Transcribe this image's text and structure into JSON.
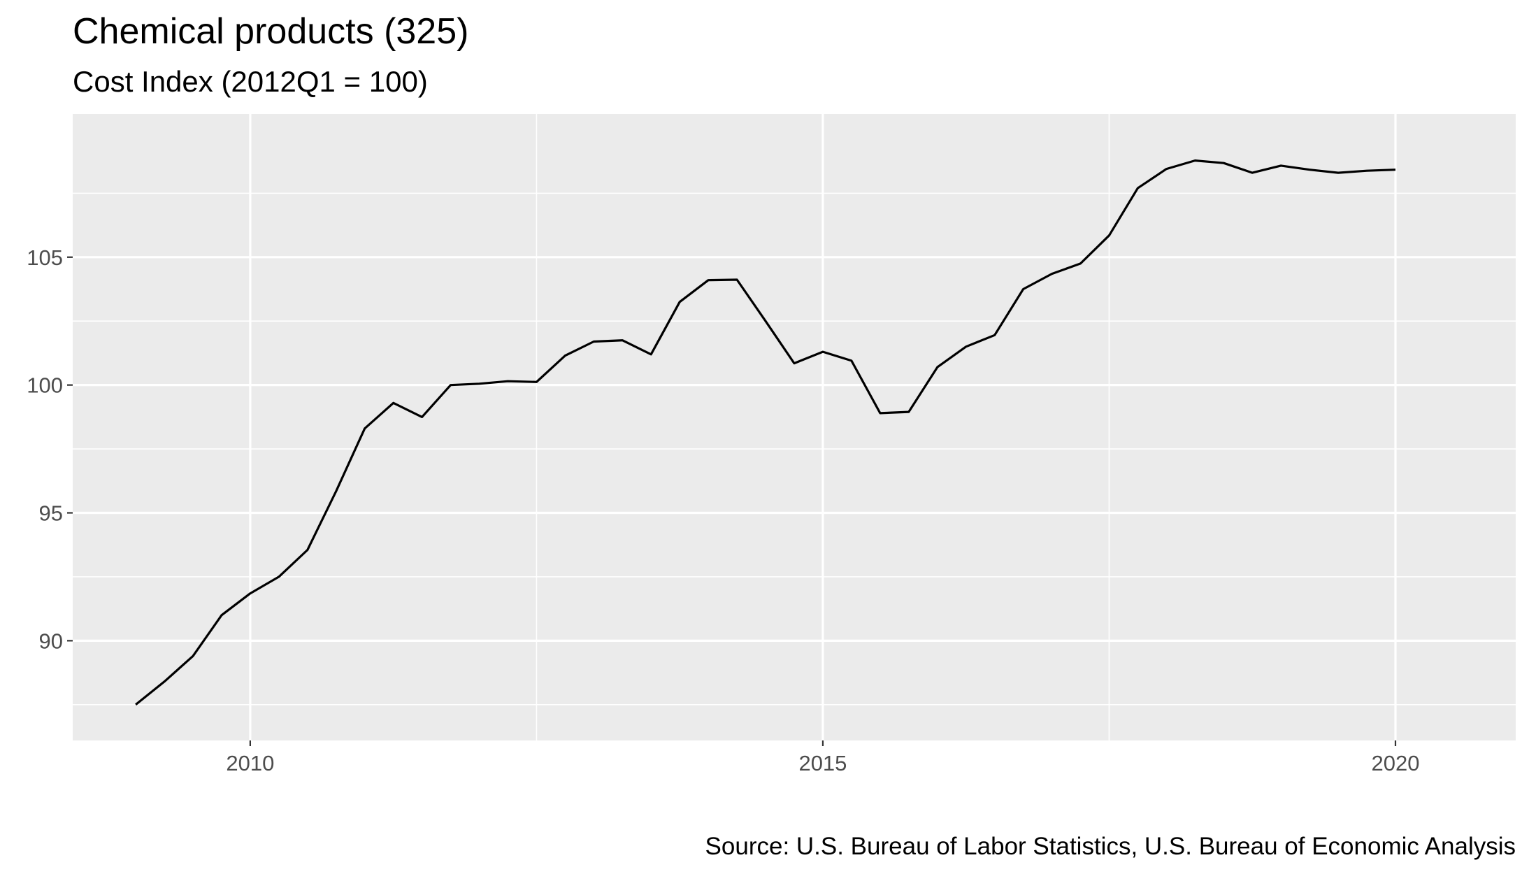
{
  "chart_data": {
    "type": "line",
    "title": "Chemical products (325)",
    "subtitle": "Cost Index (2012Q1 = 100)",
    "caption": "Source: U.S. Bureau of Labor Statistics, U.S. Bureau of Economic Analysis",
    "xlabel": "",
    "ylabel": "",
    "xlim": [
      2008.45,
      2021.05
    ],
    "ylim": [
      86.1,
      110.6
    ],
    "x_ticks": [
      2010,
      2015,
      2020
    ],
    "x_tick_labels": [
      "2010",
      "2015",
      "2020"
    ],
    "y_ticks": [
      90,
      95,
      100,
      105
    ],
    "y_tick_labels": [
      "90",
      "95",
      "100",
      "105"
    ],
    "grid": true,
    "legend": "none",
    "colors": {
      "panel": "#ebebeb",
      "grid": "#ffffff",
      "line": "#000000",
      "axis_text": "#4d4d4d"
    },
    "series": [
      {
        "x": [
          2009.0,
          2009.25,
          2009.5,
          2009.75,
          2010.0,
          2010.25,
          2010.5,
          2010.75,
          2011.0,
          2011.25,
          2011.5,
          2011.75,
          2012.0,
          2012.25,
          2012.5,
          2012.75,
          2013.0,
          2013.25,
          2013.5,
          2013.75,
          2014.0,
          2014.25,
          2014.5,
          2014.75,
          2015.0,
          2015.25,
          2015.5,
          2015.75,
          2016.0,
          2016.25,
          2016.5,
          2016.75,
          2017.0,
          2017.25,
          2017.5,
          2017.75,
          2018.0,
          2018.25,
          2018.5,
          2018.75,
          2019.0,
          2019.25,
          2019.5,
          2019.75,
          2020.0
        ],
        "values": [
          87.5,
          88.4,
          89.4,
          91.0,
          91.85,
          92.5,
          93.55,
          95.85,
          98.3,
          99.3,
          98.75,
          100.0,
          100.05,
          100.15,
          100.12,
          101.15,
          101.7,
          101.75,
          101.2,
          103.25,
          104.1,
          104.12,
          102.5,
          100.85,
          101.3,
          100.95,
          98.9,
          98.95,
          100.7,
          101.5,
          101.95,
          103.75,
          104.35,
          104.75,
          105.85,
          107.7,
          108.45,
          108.78,
          108.68,
          108.3,
          108.58,
          108.42,
          108.3,
          108.38,
          108.42
        ]
      }
    ]
  }
}
